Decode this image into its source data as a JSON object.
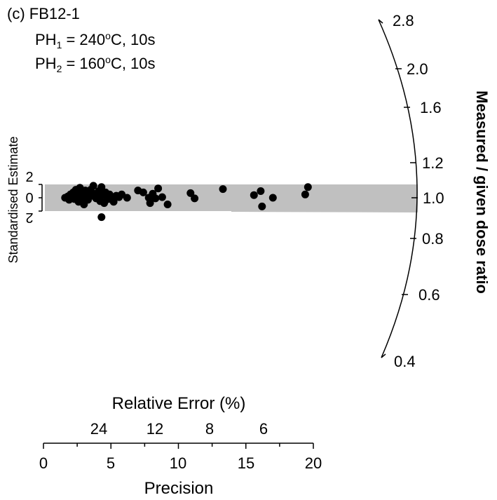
{
  "chart_data": {
    "type": "scatter",
    "subtype": "radial-plot",
    "panel_label": "(c) FB12-1",
    "annotations": [
      {
        "prefix": "PH",
        "sub": "1",
        "eq": " = 240",
        "sup": "o",
        "rest": "C, 10s"
      },
      {
        "prefix": "PH",
        "sub": "2",
        "eq": " = 160",
        "sup": "o",
        "rest": "C, 10s"
      }
    ],
    "xlabel": "Precision",
    "xlim": [
      0,
      20
    ],
    "x_ticks": [
      "0",
      "5",
      "10",
      "15",
      "20"
    ],
    "top_axis_label": "Relative Error (%)",
    "relative_error_ticks": [
      "24",
      "12",
      "8",
      "6"
    ],
    "ylabel": "Standardised Estimate",
    "y_ticks": [
      "2",
      "0",
      "2"
    ],
    "radial_axis_label": "Measured / given dose ratio",
    "radial_ticks": [
      "2.8",
      "2.0",
      "1.6",
      "1.2",
      "1.0",
      "0.8",
      "0.6",
      "0.4"
    ],
    "central_value": 1.0,
    "band": [
      -2,
      2
    ],
    "points": [
      {
        "x": 1.6,
        "y": 0.0
      },
      {
        "x": 1.8,
        "y": 0.2
      },
      {
        "x": 1.9,
        "y": -0.3
      },
      {
        "x": 2.0,
        "y": 0.5
      },
      {
        "x": 2.1,
        "y": 0.1
      },
      {
        "x": 2.2,
        "y": 0.8
      },
      {
        "x": 2.3,
        "y": -0.2
      },
      {
        "x": 2.4,
        "y": 1.2
      },
      {
        "x": 2.5,
        "y": 0.4
      },
      {
        "x": 2.6,
        "y": -0.6
      },
      {
        "x": 2.7,
        "y": 1.5
      },
      {
        "x": 2.8,
        "y": 0.7
      },
      {
        "x": 2.9,
        "y": 0.0
      },
      {
        "x": 3.0,
        "y": -1.0
      },
      {
        "x": 3.1,
        "y": 1.1
      },
      {
        "x": 3.2,
        "y": 0.5
      },
      {
        "x": 3.3,
        "y": -0.3
      },
      {
        "x": 3.5,
        "y": 1.2
      },
      {
        "x": 3.6,
        "y": 0.3
      },
      {
        "x": 3.7,
        "y": 1.8
      },
      {
        "x": 3.8,
        "y": 0.6
      },
      {
        "x": 3.9,
        "y": -0.1
      },
      {
        "x": 4.0,
        "y": 0.2
      },
      {
        "x": 4.1,
        "y": 1.0
      },
      {
        "x": 4.2,
        "y": -0.5
      },
      {
        "x": 4.3,
        "y": 1.6
      },
      {
        "x": 4.4,
        "y": 0.4
      },
      {
        "x": 4.5,
        "y": -0.8
      },
      {
        "x": 4.6,
        "y": 0.8
      },
      {
        "x": 4.7,
        "y": 0.0
      },
      {
        "x": 4.8,
        "y": -0.2
      },
      {
        "x": 4.9,
        "y": 0.5
      },
      {
        "x": 5.0,
        "y": 0.2
      },
      {
        "x": 5.2,
        "y": -0.6
      },
      {
        "x": 5.4,
        "y": 0.3
      },
      {
        "x": 5.6,
        "y": 0.1
      },
      {
        "x": 5.8,
        "y": 0.5
      },
      {
        "x": 6.2,
        "y": 0.0
      },
      {
        "x": 4.3,
        "y": -2.9
      },
      {
        "x": 7.0,
        "y": 1.1
      },
      {
        "x": 7.4,
        "y": 0.8
      },
      {
        "x": 7.8,
        "y": 0.0
      },
      {
        "x": 7.9,
        "y": -0.8
      },
      {
        "x": 8.1,
        "y": 0.6
      },
      {
        "x": 8.3,
        "y": -0.1
      },
      {
        "x": 8.5,
        "y": 1.4
      },
      {
        "x": 8.8,
        "y": 0.1
      },
      {
        "x": 9.2,
        "y": -1.0
      },
      {
        "x": 10.9,
        "y": 0.7
      },
      {
        "x": 11.2,
        "y": -0.1
      },
      {
        "x": 13.3,
        "y": 1.3
      },
      {
        "x": 15.6,
        "y": 0.4
      },
      {
        "x": 16.1,
        "y": 1.0
      },
      {
        "x": 16.2,
        "y": -1.3
      },
      {
        "x": 17.0,
        "y": 0.0
      },
      {
        "x": 19.4,
        "y": 0.5
      },
      {
        "x": 19.6,
        "y": 1.6
      }
    ]
  }
}
